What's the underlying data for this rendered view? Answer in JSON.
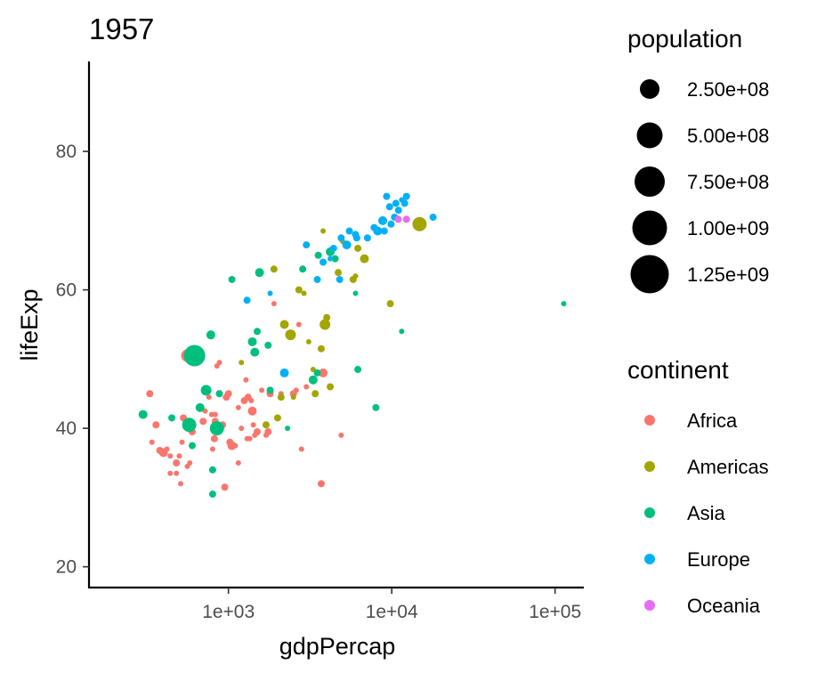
{
  "chart_data": {
    "type": "scatter",
    "title": "1957",
    "xlabel": "gdpPercap",
    "ylabel": "lifeExp",
    "xscale": "log10",
    "xlim": [
      140,
      150000
    ],
    "ylim": [
      17,
      93
    ],
    "xticks": [
      {
        "value": 1000,
        "label": "1e+03"
      },
      {
        "value": 10000,
        "label": "1e+04"
      },
      {
        "value": 100000,
        "label": "1e+05"
      }
    ],
    "yticks": [
      {
        "value": 20,
        "label": "20"
      },
      {
        "value": 40,
        "label": "40"
      },
      {
        "value": 60,
        "label": "60"
      },
      {
        "value": 80,
        "label": "80"
      }
    ],
    "grid": false,
    "legend_position": "right",
    "size_legend": {
      "title": "population",
      "entries": [
        {
          "value": 250000000,
          "label": "2.50e+08"
        },
        {
          "value": 500000000,
          "label": "5.00e+08"
        },
        {
          "value": 750000000,
          "label": "7.50e+08"
        },
        {
          "value": 1000000000,
          "label": "1.00e+09"
        },
        {
          "value": 1250000000,
          "label": "1.25e+09"
        }
      ]
    },
    "color_legend": {
      "title": "continent",
      "entries": [
        {
          "name": "Africa",
          "color": "#F8766D"
        },
        {
          "name": "Americas",
          "color": "#A3A500"
        },
        {
          "name": "Asia",
          "color": "#00BF7D"
        },
        {
          "name": "Europe",
          "color": "#00B0F6"
        },
        {
          "name": "Oceania",
          "color": "#E76BF3"
        }
      ]
    },
    "series": [
      {
        "name": "Africa",
        "color": "#F8766D",
        "points": [
          [
            330,
            45.0,
            4
          ],
          [
            340,
            38.0,
            3
          ],
          [
            360,
            40.5,
            4
          ],
          [
            380,
            36.8,
            4
          ],
          [
            400,
            36.5,
            5
          ],
          [
            420,
            37.0,
            3
          ],
          [
            440,
            36.0,
            3
          ],
          [
            440,
            33.5,
            3
          ],
          [
            480,
            33.5,
            3
          ],
          [
            480,
            35.0,
            4
          ],
          [
            500,
            36.0,
            3
          ],
          [
            510,
            32.0,
            3
          ],
          [
            520,
            38.0,
            3
          ],
          [
            530,
            41.5,
            4
          ],
          [
            560,
            34.5,
            3
          ],
          [
            560,
            50.5,
            7
          ],
          [
            580,
            35.0,
            3
          ],
          [
            600,
            39.5,
            4
          ],
          [
            700,
            41.0,
            4
          ],
          [
            720,
            42.5,
            3
          ],
          [
            760,
            44.5,
            3
          ],
          [
            790,
            42.0,
            3
          ],
          [
            800,
            37.0,
            3
          ],
          [
            820,
            38.5,
            4
          ],
          [
            830,
            41.0,
            4
          ],
          [
            830,
            42.0,
            3
          ],
          [
            850,
            49.0,
            3
          ],
          [
            880,
            49.5,
            3
          ],
          [
            920,
            40.5,
            4
          ],
          [
            950,
            31.5,
            4
          ],
          [
            970,
            44.5,
            4
          ],
          [
            1000,
            45.0,
            4
          ],
          [
            1020,
            38.0,
            4
          ],
          [
            1050,
            37.5,
            5
          ],
          [
            1100,
            37.5,
            3
          ],
          [
            1150,
            43.0,
            3
          ],
          [
            1150,
            35.0,
            3
          ],
          [
            1200,
            40.0,
            3
          ],
          [
            1250,
            44.0,
            4
          ],
          [
            1280,
            47.0,
            3
          ],
          [
            1300,
            38.5,
            3
          ],
          [
            1320,
            44.5,
            4
          ],
          [
            1350,
            38.5,
            3
          ],
          [
            1380,
            44.0,
            3
          ],
          [
            1400,
            42.5,
            5
          ],
          [
            1420,
            40.5,
            3
          ],
          [
            1450,
            39.0,
            3
          ],
          [
            1500,
            39.5,
            4
          ],
          [
            1600,
            45.5,
            3
          ],
          [
            1700,
            39.0,
            3
          ],
          [
            1750,
            39.5,
            4
          ],
          [
            1800,
            45.0,
            4
          ],
          [
            1900,
            58.0,
            3
          ],
          [
            2100,
            45.0,
            3
          ],
          [
            2500,
            45.0,
            4
          ],
          [
            2600,
            45.5,
            3
          ],
          [
            2700,
            55.0,
            3
          ],
          [
            2800,
            37.0,
            3
          ],
          [
            3000,
            46.0,
            3
          ],
          [
            3700,
            32.0,
            4
          ],
          [
            3800,
            48.0,
            5
          ],
          [
            4900,
            39.0,
            3
          ]
        ]
      },
      {
        "name": "Americas",
        "color": "#A3A500",
        "points": [
          [
            1200,
            49.5,
            3
          ],
          [
            1700,
            40.5,
            4
          ],
          [
            1900,
            63.0,
            4
          ],
          [
            2000,
            41.5,
            4
          ],
          [
            2100,
            44.5,
            4
          ],
          [
            2200,
            55.0,
            5
          ],
          [
            2400,
            53.5,
            6
          ],
          [
            2500,
            44.5,
            3
          ],
          [
            2700,
            60.0,
            4
          ],
          [
            2900,
            59.5,
            3
          ],
          [
            3100,
            52.5,
            3
          ],
          [
            3300,
            48.5,
            3
          ],
          [
            3400,
            45.0,
            4
          ],
          [
            3500,
            65.0,
            3
          ],
          [
            3700,
            51.5,
            4
          ],
          [
            3800,
            68.5,
            3
          ],
          [
            3900,
            55.0,
            6
          ],
          [
            4000,
            56.0,
            4
          ],
          [
            4200,
            46.0,
            4
          ],
          [
            4700,
            62.5,
            4
          ],
          [
            5000,
            67.0,
            3
          ],
          [
            5800,
            61.5,
            4
          ],
          [
            6000,
            62.0,
            3
          ],
          [
            6200,
            66.0,
            4
          ],
          [
            6800,
            64.5,
            5
          ],
          [
            9800,
            58.0,
            4
          ],
          [
            14800,
            69.5,
            8
          ]
        ]
      },
      {
        "name": "Asia",
        "color": "#00BF7D",
        "points": [
          [
            300,
            42.0,
            5
          ],
          [
            450,
            41.5,
            4
          ],
          [
            575,
            40.5,
            8
          ],
          [
            600,
            37.5,
            4
          ],
          [
            620,
            50.5,
            12
          ],
          [
            670,
            43.0,
            5
          ],
          [
            730,
            45.5,
            6
          ],
          [
            780,
            53.5,
            5
          ],
          [
            800,
            30.5,
            4
          ],
          [
            800,
            34.0,
            4
          ],
          [
            850,
            40.0,
            8
          ],
          [
            880,
            45.0,
            4
          ],
          [
            1050,
            61.5,
            4
          ],
          [
            1400,
            52.5,
            5
          ],
          [
            1450,
            51.0,
            5
          ],
          [
            1500,
            54.0,
            4
          ],
          [
            1550,
            62.5,
            5
          ],
          [
            1750,
            52.0,
            4
          ],
          [
            1800,
            45.5,
            4
          ],
          [
            2300,
            40.0,
            3
          ],
          [
            2850,
            63.0,
            4
          ],
          [
            3300,
            47.0,
            5
          ],
          [
            3500,
            48.0,
            4
          ],
          [
            3550,
            65.0,
            4
          ],
          [
            4200,
            65.5,
            5
          ],
          [
            4500,
            64.5,
            4
          ],
          [
            6000,
            59.5,
            3
          ],
          [
            6200,
            48.5,
            4
          ],
          [
            8000,
            43.0,
            4
          ],
          [
            11500,
            54.0,
            3
          ],
          [
            113000,
            58.0,
            3
          ]
        ]
      },
      {
        "name": "Europe",
        "color": "#00B0F6",
        "points": [
          [
            1300,
            58.5,
            4
          ],
          [
            1800,
            59.5,
            3
          ],
          [
            2200,
            48.0,
            5
          ],
          [
            3000,
            66.5,
            4
          ],
          [
            3500,
            61.5,
            4
          ],
          [
            3800,
            64.0,
            4
          ],
          [
            4200,
            64.5,
            3
          ],
          [
            4400,
            66.0,
            4
          ],
          [
            4800,
            61.5,
            4
          ],
          [
            4900,
            67.5,
            4
          ],
          [
            5300,
            66.5,
            5
          ],
          [
            5500,
            68.5,
            4
          ],
          [
            6000,
            68.0,
            4
          ],
          [
            6100,
            67.5,
            4
          ],
          [
            7100,
            67.5,
            4
          ],
          [
            7800,
            69.0,
            4
          ],
          [
            8200,
            68.5,
            5
          ],
          [
            8800,
            70.0,
            5
          ],
          [
            9000,
            68.5,
            4
          ],
          [
            9300,
            73.5,
            4
          ],
          [
            9700,
            72.0,
            4
          ],
          [
            9900,
            69.5,
            4
          ],
          [
            10400,
            70.5,
            4
          ],
          [
            10600,
            72.5,
            4
          ],
          [
            11000,
            71.5,
            4
          ],
          [
            11500,
            73.0,
            3
          ],
          [
            12000,
            72.5,
            4
          ],
          [
            12300,
            73.5,
            4
          ],
          [
            17900,
            70.5,
            4
          ]
        ]
      },
      {
        "name": "Oceania",
        "color": "#E76BF3",
        "points": [
          [
            10950,
            70.2,
            4
          ],
          [
            12300,
            70.2,
            4
          ]
        ]
      }
    ]
  }
}
